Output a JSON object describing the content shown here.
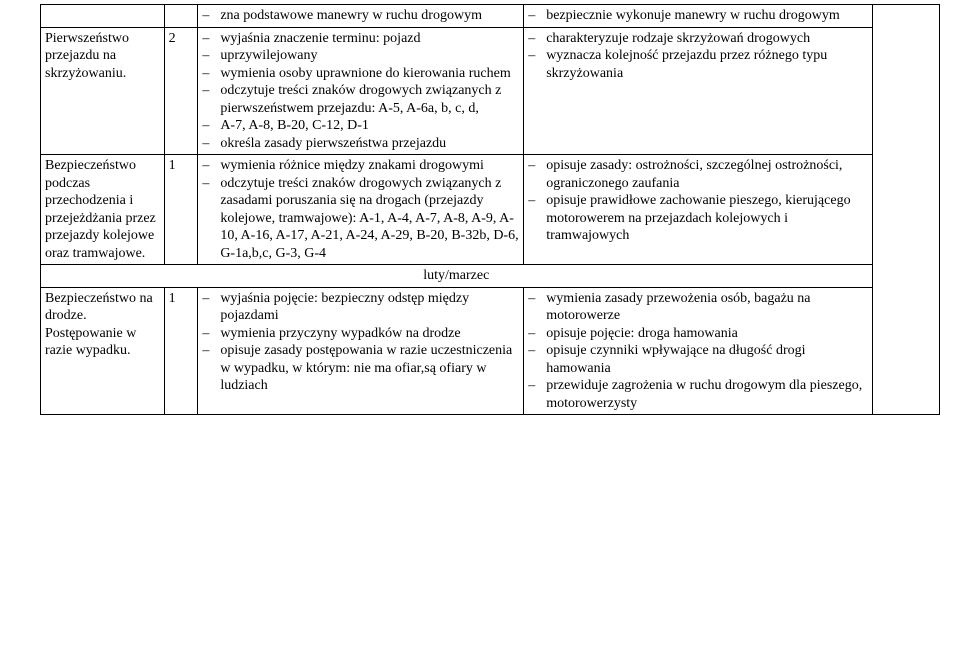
{
  "rows": [
    {
      "col1": "",
      "col2": "",
      "left": [
        "zna podstawowe manewry w ruchu drogowym"
      ],
      "right": [
        "bezpiecznie wykonuje manewry w ruchu drogowym"
      ]
    },
    {
      "col1": "Pierwszeństwo przejazdu na skrzyżowaniu.",
      "col2": "2",
      "left": [
        "wyjaśnia znaczenie terminu: pojazd",
        "uprzywilejowany",
        "wymienia osoby uprawnione do kierowania ruchem",
        "odczytuje treści znaków drogowych związanych z pierwszeństwem przejazdu: A-5, A-6a, b, c, d,",
        "A-7, A-8, B-20, C-12, D-1",
        "określa zasady pierwszeństwa przejazdu"
      ],
      "right": [
        "charakteryzuje rodzaje skrzyżowań drogowych",
        "wyznacza kolejność przejazdu przez różnego typu skrzyżowania"
      ]
    },
    {
      "col1": "Bezpieczeństwo podczas przechodzenia i przejeżdżania przez przejazdy kolejowe oraz tramwajowe.",
      "col2": "1",
      "left": [
        "wymienia różnice między znakami drogowymi",
        "odczytuje treści znaków drogowych związanych z zasadami poruszania się na drogach (przejazdy kolejowe, tramwajowe): A-1, A-4, A-7, A-8, A-9, A-10, A-16, A-17, A-21, A-24, A-29, B-20, B-32b, D-6, G-1a,b,c, G-3, G-4"
      ],
      "right": [
        "opisuje zasady: ostrożności, szczególnej ostrożności, ograniczonego zaufania",
        "opisuje prawidłowe zachowanie pieszego, kierującego motorowerem na przejazdach kolejowych i tramwajowych"
      ]
    }
  ],
  "section": "luty/marzec",
  "lastRow": {
    "col1": "Bezpieczeństwo na drodze. Postępowanie w razie wypadku.",
    "col2": "1",
    "left": [
      "wyjaśnia pojęcie: bezpieczny odstęp między pojazdami",
      "wymienia przyczyny wypadków na drodze",
      "opisuje zasady postępowania w razie uczestniczenia w wypadku, w którym:   nie ma ofiar,są ofiary w ludziach"
    ],
    "right": [
      "wymienia zasady przewożenia osób, bagażu na motorowerze",
      "opisuje pojęcie: droga hamowania",
      "opisuje czynniki wpływające na długość drogi hamowania",
      "przewiduje zagrożenia w ruchu drogowym dla pieszego, motorowerzysty"
    ]
  }
}
